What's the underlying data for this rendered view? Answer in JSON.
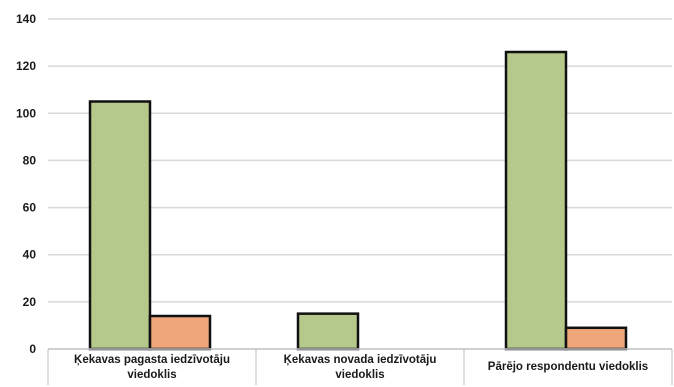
{
  "chart_data": {
    "type": "bar",
    "title": "",
    "xlabel": "",
    "ylabel": "",
    "ylim": [
      0,
      140
    ],
    "yticks": [
      0,
      20,
      40,
      60,
      80,
      100,
      120,
      140
    ],
    "grid": true,
    "legend": "none",
    "categories": [
      "Ķekavas pagasta iedzīvotāju viedoklis",
      "Ķekavas novada iedzīvotāju viedoklis",
      "Pārējo respondentu viedoklis"
    ],
    "series": [
      {
        "color": "#b5c98c",
        "values": [
          105,
          15,
          126
        ]
      },
      {
        "color": "#eea67a",
        "values": [
          14,
          0,
          9
        ]
      }
    ]
  }
}
